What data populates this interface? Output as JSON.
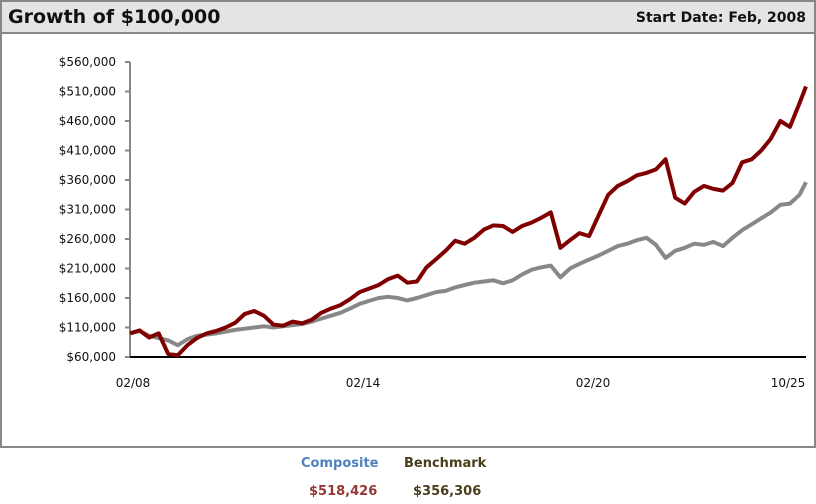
{
  "header": {
    "title": "Growth of $100,000",
    "start_date": "Start Date: Feb, 2008"
  },
  "legend": {
    "composite_label": "Composite",
    "benchmark_label": "Benchmark",
    "composite_value": "$518,426",
    "benchmark_value": "$356,306"
  },
  "colors": {
    "composite_line": "#800000",
    "benchmark_line": "#888888",
    "composite_label": "#4f81bd",
    "benchmark_label": "#4a3f1c",
    "composite_value": "#953735",
    "benchmark_value": "#4a3f1c"
  },
  "chart_data": {
    "type": "line",
    "title": "Growth of $100,000",
    "subtitle": "Start Date: Feb, 2008",
    "xlabel": "",
    "ylabel": "",
    "ylim": [
      60000,
      560000
    ],
    "yticks": [
      "$60,000",
      "$110,000",
      "$160,000",
      "$210,000",
      "$260,000",
      "$310,000",
      "$360,000",
      "$410,000",
      "$460,000",
      "$510,000",
      "$560,000"
    ],
    "xticks": [
      "02/08",
      "02/14",
      "02/20",
      "10/25"
    ],
    "grid": false,
    "legend_position": "bottom",
    "x": [
      0,
      0.25,
      0.5,
      0.75,
      1,
      1.25,
      1.5,
      1.75,
      2,
      2.25,
      2.5,
      2.75,
      3,
      3.25,
      3.5,
      3.75,
      4,
      4.25,
      4.5,
      4.75,
      5,
      5.25,
      5.5,
      5.75,
      6,
      6.25,
      6.5,
      6.75,
      7,
      7.25,
      7.5,
      7.75,
      8,
      8.25,
      8.5,
      8.75,
      9,
      9.25,
      9.5,
      9.75,
      10,
      10.25,
      10.5,
      10.75,
      11,
      11.25,
      11.5,
      11.75,
      12,
      12.25,
      12.5,
      12.75,
      13,
      13.25,
      13.5,
      13.75,
      14,
      14.25,
      14.5,
      14.75,
      15,
      15.25,
      15.5,
      15.75,
      16,
      16.25,
      16.5,
      16.75,
      17,
      17.25,
      17.5,
      17.67
    ],
    "x_unit": "years since 02/2008",
    "series": [
      {
        "name": "Composite",
        "color": "#800000",
        "values": [
          100000,
          105000,
          93000,
          100000,
          65000,
          63000,
          80000,
          92000,
          100000,
          104000,
          110000,
          118000,
          133000,
          138000,
          130000,
          115000,
          113000,
          120000,
          117000,
          123000,
          135000,
          142000,
          148000,
          158000,
          170000,
          176000,
          182000,
          192000,
          198000,
          186000,
          188000,
          212000,
          226000,
          240000,
          257000,
          252000,
          262000,
          276000,
          283000,
          282000,
          272000,
          282000,
          288000,
          296000,
          305000,
          245000,
          258000,
          270000,
          265000,
          300000,
          335000,
          350000,
          358000,
          368000,
          372000,
          378000,
          395000,
          330000,
          320000,
          340000,
          350000,
          345000,
          342000,
          355000,
          390000,
          395000,
          410000,
          430000,
          460000,
          450000,
          490000,
          518426
        ]
      },
      {
        "name": "Benchmark",
        "color": "#888888",
        "values": [
          100000,
          104000,
          96000,
          92000,
          88000,
          80000,
          90000,
          96000,
          98000,
          100000,
          103000,
          106000,
          108000,
          110000,
          112000,
          110000,
          112000,
          114000,
          116000,
          120000,
          125000,
          130000,
          135000,
          142000,
          150000,
          155000,
          160000,
          162000,
          160000,
          156000,
          160000,
          165000,
          170000,
          172000,
          178000,
          182000,
          186000,
          188000,
          190000,
          185000,
          190000,
          200000,
          208000,
          212000,
          215000,
          195000,
          210000,
          218000,
          225000,
          232000,
          240000,
          248000,
          252000,
          258000,
          262000,
          250000,
          228000,
          240000,
          245000,
          252000,
          250000,
          255000,
          248000,
          262000,
          275000,
          285000,
          295000,
          305000,
          318000,
          320000,
          335000,
          356306
        ]
      }
    ]
  }
}
